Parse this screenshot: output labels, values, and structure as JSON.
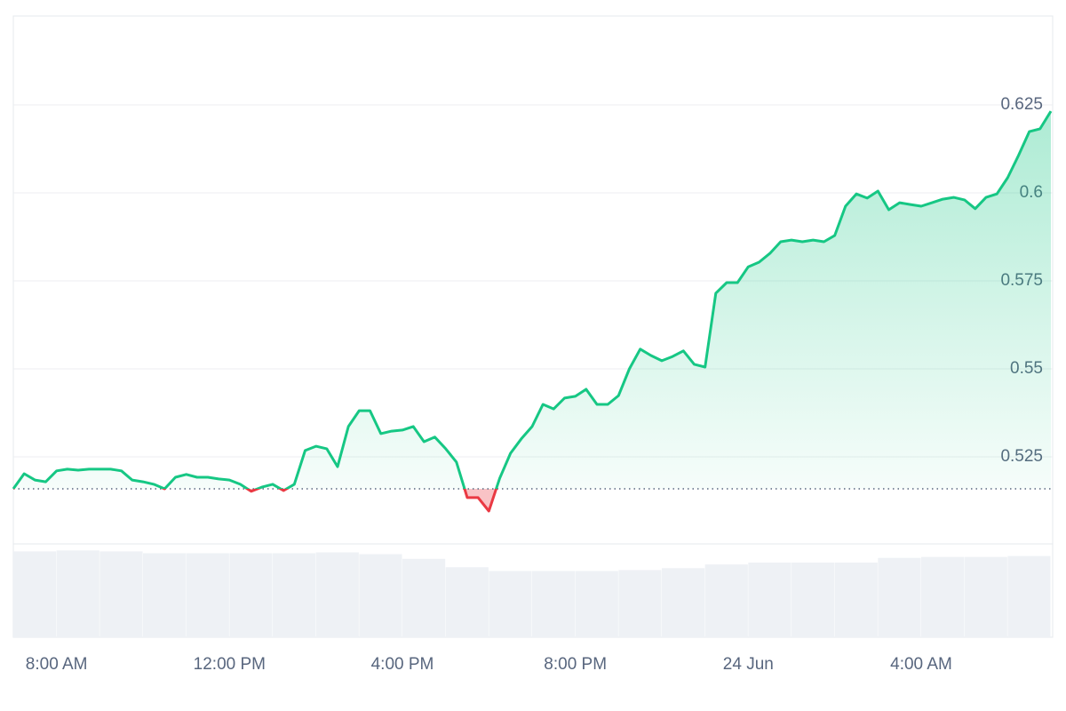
{
  "chart_data": {
    "type": "line",
    "x": [
      7,
      7.25,
      7.5,
      7.75,
      8,
      8.25,
      8.5,
      8.75,
      9,
      9.25,
      9.5,
      9.75,
      10,
      10.25,
      10.5,
      10.75,
      11,
      11.25,
      11.5,
      11.75,
      12,
      12.25,
      12.5,
      12.75,
      13,
      13.25,
      13.5,
      13.75,
      14,
      14.25,
      14.5,
      14.75,
      15,
      15.25,
      15.5,
      15.75,
      16,
      16.25,
      16.5,
      16.75,
      17,
      17.25,
      17.5,
      17.75,
      18,
      18.25,
      18.5,
      18.75,
      19,
      19.25,
      19.5,
      19.75,
      20,
      20.25,
      20.5,
      20.75,
      21,
      21.25,
      21.5,
      21.75,
      22,
      22.25,
      22.5,
      22.75,
      23,
      23.25,
      23.5,
      23.75,
      24,
      24.25,
      24.5,
      24.75,
      25,
      25.25,
      25.5,
      25.75,
      26,
      26.25,
      26.5,
      26.75,
      27,
      27.25,
      27.5,
      27.75,
      28,
      28.25,
      28.5,
      28.75,
      29,
      29.25,
      29.5,
      29.75,
      30,
      30.25,
      30.5,
      30.75,
      31
    ],
    "series": [
      {
        "color": "#16c784",
        "below_color": "#ea3943",
        "values": [
          0.5159,
          0.5202,
          0.5184,
          0.5179,
          0.521,
          0.5215,
          0.5212,
          0.5215,
          0.5215,
          0.5215,
          0.521,
          0.5184,
          0.5179,
          0.5172,
          0.5159,
          0.5192,
          0.52,
          0.5192,
          0.5192,
          0.5187,
          0.5184,
          0.5172,
          0.5152,
          0.5164,
          0.5172,
          0.5154,
          0.5172,
          0.5268,
          0.528,
          0.5273,
          0.5222,
          0.5336,
          0.5381,
          0.5381,
          0.5316,
          0.5323,
          0.5326,
          0.5336,
          0.5293,
          0.5306,
          0.5273,
          0.5235,
          0.5134,
          0.5134,
          0.5096,
          0.5189,
          0.526,
          0.5301,
          0.5336,
          0.5399,
          0.5386,
          0.5417,
          0.5422,
          0.5442,
          0.5399,
          0.5399,
          0.5424,
          0.55,
          0.5556,
          0.5538,
          0.5523,
          0.5535,
          0.5551,
          0.5513,
          0.5505,
          0.5715,
          0.5745,
          0.5745,
          0.579,
          0.5803,
          0.5828,
          0.5861,
          0.5866,
          0.5861,
          0.5866,
          0.5861,
          0.5879,
          0.5962,
          0.5997,
          0.5985,
          0.6005,
          0.5952,
          0.5972,
          0.5967,
          0.5962,
          0.5972,
          0.5982,
          0.5987,
          0.598,
          0.5955,
          0.5987,
          0.5997,
          0.6043,
          0.6106,
          0.6174,
          0.6182,
          0.6232
        ]
      }
    ],
    "reference_value": 0.5159,
    "volume": {
      "color": "#eef1f5",
      "x": [
        7,
        8,
        9,
        10,
        11,
        12,
        13,
        14,
        15,
        16,
        17,
        18,
        19,
        20,
        21,
        22,
        23,
        24,
        25,
        26,
        27,
        28,
        29,
        30
      ],
      "values": [
        92,
        93,
        92,
        90,
        90,
        90,
        90,
        91,
        89,
        84,
        75,
        71,
        71,
        71,
        72,
        74,
        78,
        80,
        80,
        80,
        85,
        86,
        86,
        87
      ],
      "ylim": [
        0,
        100
      ]
    },
    "xlim": [
      7,
      31
    ],
    "xticks": [
      {
        "value": 8,
        "label": "8:00 AM"
      },
      {
        "value": 12,
        "label": "12:00 PM"
      },
      {
        "value": 16,
        "label": "4:00 PM"
      },
      {
        "value": 20,
        "label": "8:00 PM"
      },
      {
        "value": 24,
        "label": "24 Jun"
      },
      {
        "value": 28,
        "label": "4:00 AM"
      }
    ],
    "ylim": [
      0.5,
      0.65
    ],
    "yticks": [
      0.525,
      0.55,
      0.575,
      0.6,
      0.625
    ],
    "grid": true
  }
}
